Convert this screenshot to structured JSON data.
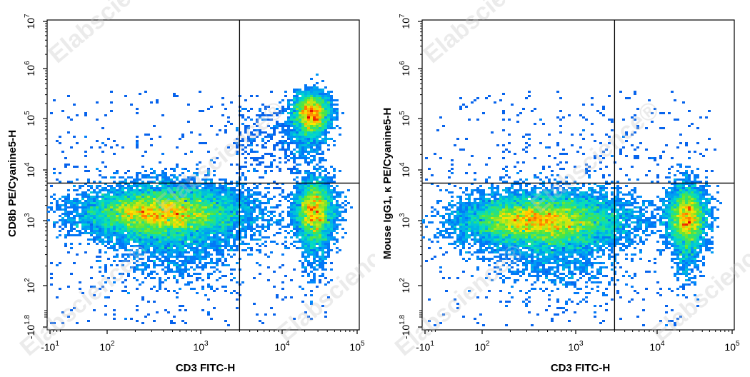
{
  "watermark_text": "Elabscience",
  "watermark_mark": "®",
  "chart_data": [
    {
      "type": "scatter",
      "subtype": "flow-cytometry-density",
      "xlabel": "CD3 FITC-H",
      "ylabel": "CD8b PE/Cyanine5-H",
      "x_scale": "biexponential",
      "y_scale": "biexponential",
      "xlim": [
        -10,
        100000
      ],
      "ylim": [
        -10,
        10000000
      ],
      "x_ticks": [
        {
          "base": "-10",
          "exp": "1",
          "value": -10
        },
        {
          "base": "10",
          "exp": "2",
          "value": 100
        },
        {
          "base": "10",
          "exp": "3",
          "value": 1000
        },
        {
          "base": "10",
          "exp": "4",
          "value": 10000
        },
        {
          "base": "10",
          "exp": "5",
          "value": 100000
        }
      ],
      "y_ticks": [
        {
          "base": "-10",
          "exp": "1.8",
          "value": -10
        },
        {
          "base": "10",
          "exp": "2",
          "value": 100
        },
        {
          "base": "10",
          "exp": "3",
          "value": 1000
        },
        {
          "base": "10",
          "exp": "4",
          "value": 10000
        },
        {
          "base": "10",
          "exp": "5",
          "value": 100000
        },
        {
          "base": "10",
          "exp": "6",
          "value": 1000000
        },
        {
          "base": "10",
          "exp": "7",
          "value": 10000000
        }
      ],
      "gate": {
        "x": 3000,
        "y": 5500
      },
      "populations": [
        {
          "x": 450,
          "y": 1400,
          "density": "high"
        },
        {
          "x": 25000,
          "y": 130000,
          "density": "high"
        },
        {
          "x": 27000,
          "y": 1600,
          "density": "high"
        }
      ]
    },
    {
      "type": "scatter",
      "subtype": "flow-cytometry-density",
      "xlabel": "CD3 FITC-H",
      "ylabel": "Mouse IgG1, κ PE/Cyanine5-H",
      "x_scale": "biexponential",
      "y_scale": "biexponential",
      "xlim": [
        -10,
        100000
      ],
      "ylim": [
        -10,
        10000000
      ],
      "x_ticks": [
        {
          "base": "-10",
          "exp": "1",
          "value": -10
        },
        {
          "base": "10",
          "exp": "2",
          "value": 100
        },
        {
          "base": "10",
          "exp": "3",
          "value": 1000
        },
        {
          "base": "10",
          "exp": "4",
          "value": 10000
        },
        {
          "base": "10",
          "exp": "5",
          "value": 100000
        }
      ],
      "y_ticks": [
        {
          "base": "-10",
          "exp": "1.8",
          "value": -10
        },
        {
          "base": "10",
          "exp": "2",
          "value": 100
        },
        {
          "base": "10",
          "exp": "3",
          "value": 1000
        },
        {
          "base": "10",
          "exp": "4",
          "value": 10000
        },
        {
          "base": "10",
          "exp": "5",
          "value": 100000
        },
        {
          "base": "10",
          "exp": "6",
          "value": 1000000
        },
        {
          "base": "10",
          "exp": "7",
          "value": 10000000
        }
      ],
      "gate": {
        "x": 3000,
        "y": 5500
      },
      "populations": [
        {
          "x": 500,
          "y": 1000,
          "density": "high"
        },
        {
          "x": 25000,
          "y": 1200,
          "density": "high"
        }
      ]
    }
  ]
}
